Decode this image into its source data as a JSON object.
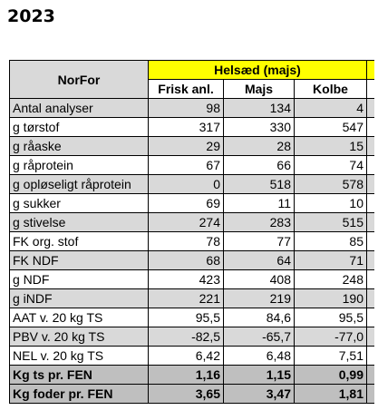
{
  "title": "2023",
  "table": {
    "corner_label": "NorFor",
    "group_header": "Helsæd (majs)",
    "columns": [
      "Frisk anl.",
      "Majs",
      "Kolbe"
    ],
    "rows": [
      {
        "label": "Antal analyser",
        "values": [
          "98",
          "134",
          "4"
        ],
        "style": "shade"
      },
      {
        "label": "g tørstof",
        "values": [
          "317",
          "330",
          "547"
        ],
        "style": "plain"
      },
      {
        "label": "g råaske",
        "values": [
          "29",
          "28",
          "15"
        ],
        "style": "shade"
      },
      {
        "label": "g råprotein",
        "values": [
          "67",
          "66",
          "74"
        ],
        "style": "plain"
      },
      {
        "label": "g opløseligt råprotein",
        "values": [
          "0",
          "518",
          "578"
        ],
        "style": "shade"
      },
      {
        "label": "g sukker",
        "values": [
          "69",
          "11",
          "10"
        ],
        "style": "plain"
      },
      {
        "label": "g stivelse",
        "values": [
          "274",
          "283",
          "515"
        ],
        "style": "shade"
      },
      {
        "label": "FK org. stof",
        "values": [
          "78",
          "77",
          "85"
        ],
        "style": "plain"
      },
      {
        "label": "FK NDF",
        "values": [
          "68",
          "64",
          "71"
        ],
        "style": "shade"
      },
      {
        "label": "g NDF",
        "values": [
          "423",
          "408",
          "248"
        ],
        "style": "plain"
      },
      {
        "label": "g iNDF",
        "values": [
          "221",
          "219",
          "190"
        ],
        "style": "shade"
      },
      {
        "label": "AAT v. 20 kg TS",
        "values": [
          "95,5",
          "84,6",
          "95,5"
        ],
        "style": "plain"
      },
      {
        "label": "PBV v. 20 kg TS",
        "values": [
          "-82,5",
          "-65,7",
          "-77,0"
        ],
        "style": "shade"
      },
      {
        "label": "NEL v. 20 kg TS",
        "values": [
          "6,42",
          "6,48",
          "7,51"
        ],
        "style": "plain"
      },
      {
        "label": "Kg ts pr. FEN",
        "values": [
          "1,16",
          "1,15",
          "0,99"
        ],
        "style": "total"
      },
      {
        "label": "Kg foder pr. FEN",
        "values": [
          "3,65",
          "3,47",
          "1,81"
        ],
        "style": "total"
      }
    ],
    "colors": {
      "group_header": "#ffff00",
      "shade": "#d9d9d9",
      "total": "#bfbfbf"
    }
  }
}
